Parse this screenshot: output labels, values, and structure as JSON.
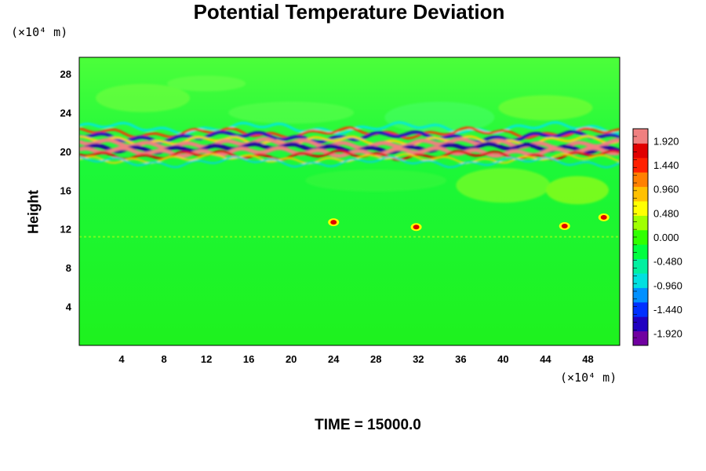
{
  "chart_data": {
    "type": "heatmap",
    "title": "Potential Temperature Deviation",
    "xlabel_unit": "(×10⁴ m)",
    "ylabel": "Height",
    "ylabel_unit": "(×10⁴ m)",
    "footer": "TIME = 15000.0",
    "x_ticks": [
      "4",
      "8",
      "12",
      "16",
      "20",
      "24",
      "28",
      "32",
      "36",
      "40",
      "44",
      "48"
    ],
    "x_tick_values": [
      4,
      8,
      12,
      16,
      20,
      24,
      28,
      32,
      36,
      40,
      44,
      48
    ],
    "y_ticks": [
      "4",
      "8",
      "12",
      "16",
      "20",
      "24",
      "28"
    ],
    "y_tick_values": [
      4,
      8,
      12,
      16,
      20,
      24,
      28
    ],
    "xlim": [
      0,
      51
    ],
    "ylim": [
      0,
      29.7
    ],
    "colorbar": {
      "labels": [
        "1.920",
        "1.440",
        "0.960",
        "0.480",
        "0.000",
        "-0.480",
        "-0.960",
        "-1.440",
        "-1.920"
      ],
      "range": [
        -2.16,
        2.16
      ],
      "colors": [
        "#7000a0",
        "#2000c0",
        "#0030ff",
        "#0090ff",
        "#00e0e0",
        "#00f0a0",
        "#00ff40",
        "#30ff00",
        "#a0ff00",
        "#ffff00",
        "#ffc000",
        "#ff8000",
        "#ff2000",
        "#e00000",
        "#f08080"
      ]
    },
    "features": [
      {
        "label": "main perturbation band",
        "height_range": [
          19.5,
          22.5
        ],
        "min": -1.92,
        "max": 1.92
      },
      {
        "label": "weak layer near tropopause",
        "height": 11.2
      },
      {
        "label": "local warm anomaly",
        "x": 24,
        "y": 12.7,
        "value": 1.9
      },
      {
        "label": "local warm anomaly",
        "x": 31.8,
        "y": 12.2,
        "value": 1.9
      },
      {
        "label": "local warm anomaly",
        "x": 45.8,
        "y": 12.3,
        "value": 1.9
      },
      {
        "label": "local warm anomaly",
        "x": 49.5,
        "y": 13.2,
        "value": 1.9
      }
    ]
  }
}
